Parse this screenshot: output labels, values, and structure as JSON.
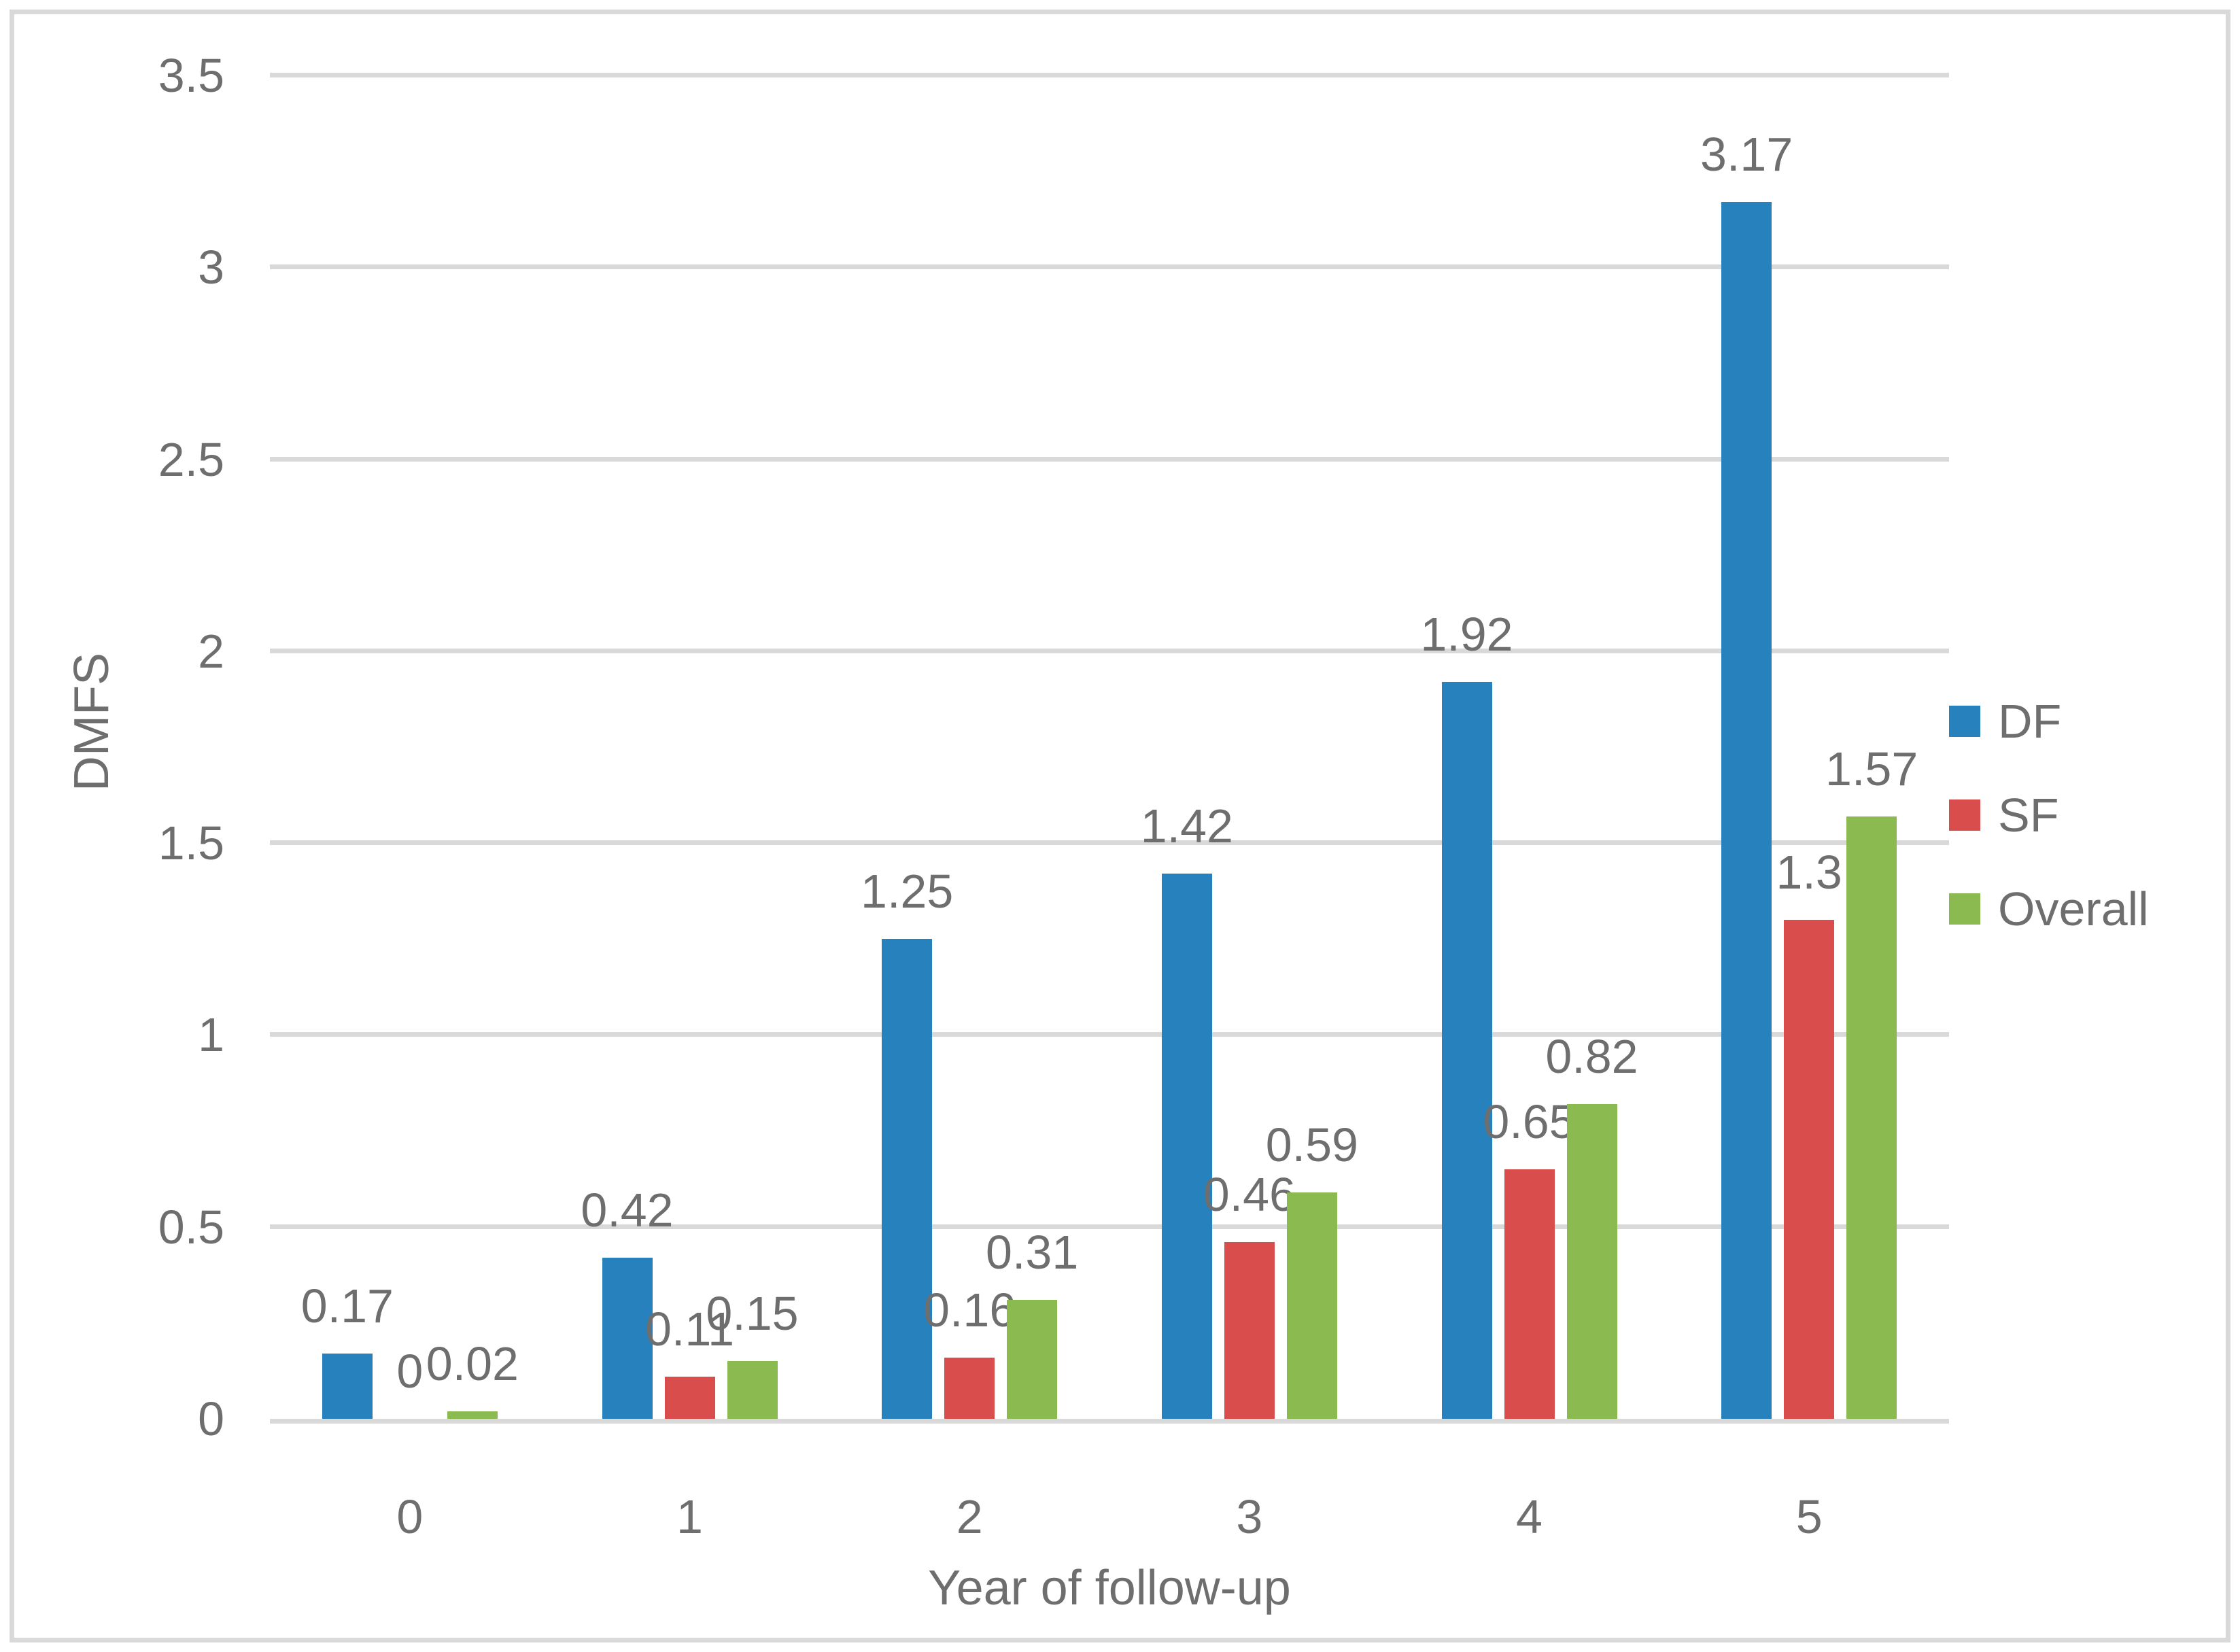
{
  "chart_data": {
    "type": "bar",
    "title": "",
    "xlabel": "Year of follow-up",
    "ylabel": "DMFS",
    "categories": [
      "0",
      "1",
      "2",
      "3",
      "4",
      "5"
    ],
    "series": [
      {
        "name": "DF",
        "color": "#2781BD",
        "values": [
          0.17,
          0.42,
          1.25,
          1.42,
          1.92,
          3.17
        ],
        "labels": [
          "0.17",
          "0.42",
          "1.25",
          "1.42",
          "1.92",
          "3.17"
        ]
      },
      {
        "name": "SF",
        "color": "#DA4D4D",
        "values": [
          0,
          0.11,
          0.16,
          0.46,
          0.65,
          1.3
        ],
        "labels": [
          "0",
          "0.11",
          "0.16",
          "0.46",
          "0.65",
          "1.3"
        ]
      },
      {
        "name": "Overall",
        "color": "#8BBB50",
        "values": [
          0.02,
          0.15,
          0.31,
          0.59,
          0.82,
          1.57
        ],
        "labels": [
          "0.02",
          "0.15",
          "0.31",
          "0.59",
          "0.82",
          "1.57"
        ]
      }
    ],
    "ylim": [
      0,
      3.5
    ],
    "y_tick_step": 0.5,
    "y_ticks": [
      "0",
      "0.5",
      "1",
      "1.5",
      "2",
      "2.5",
      "3",
      "3.5"
    ],
    "grid": "horizontal",
    "legend_position": "right",
    "data_labels": "above-bars"
  },
  "style": {
    "grid_color": "#D9D9D9",
    "border_color": "#D9D9D9",
    "text_color": "#6E6E6E",
    "background_color": "#FFFFFF"
  }
}
